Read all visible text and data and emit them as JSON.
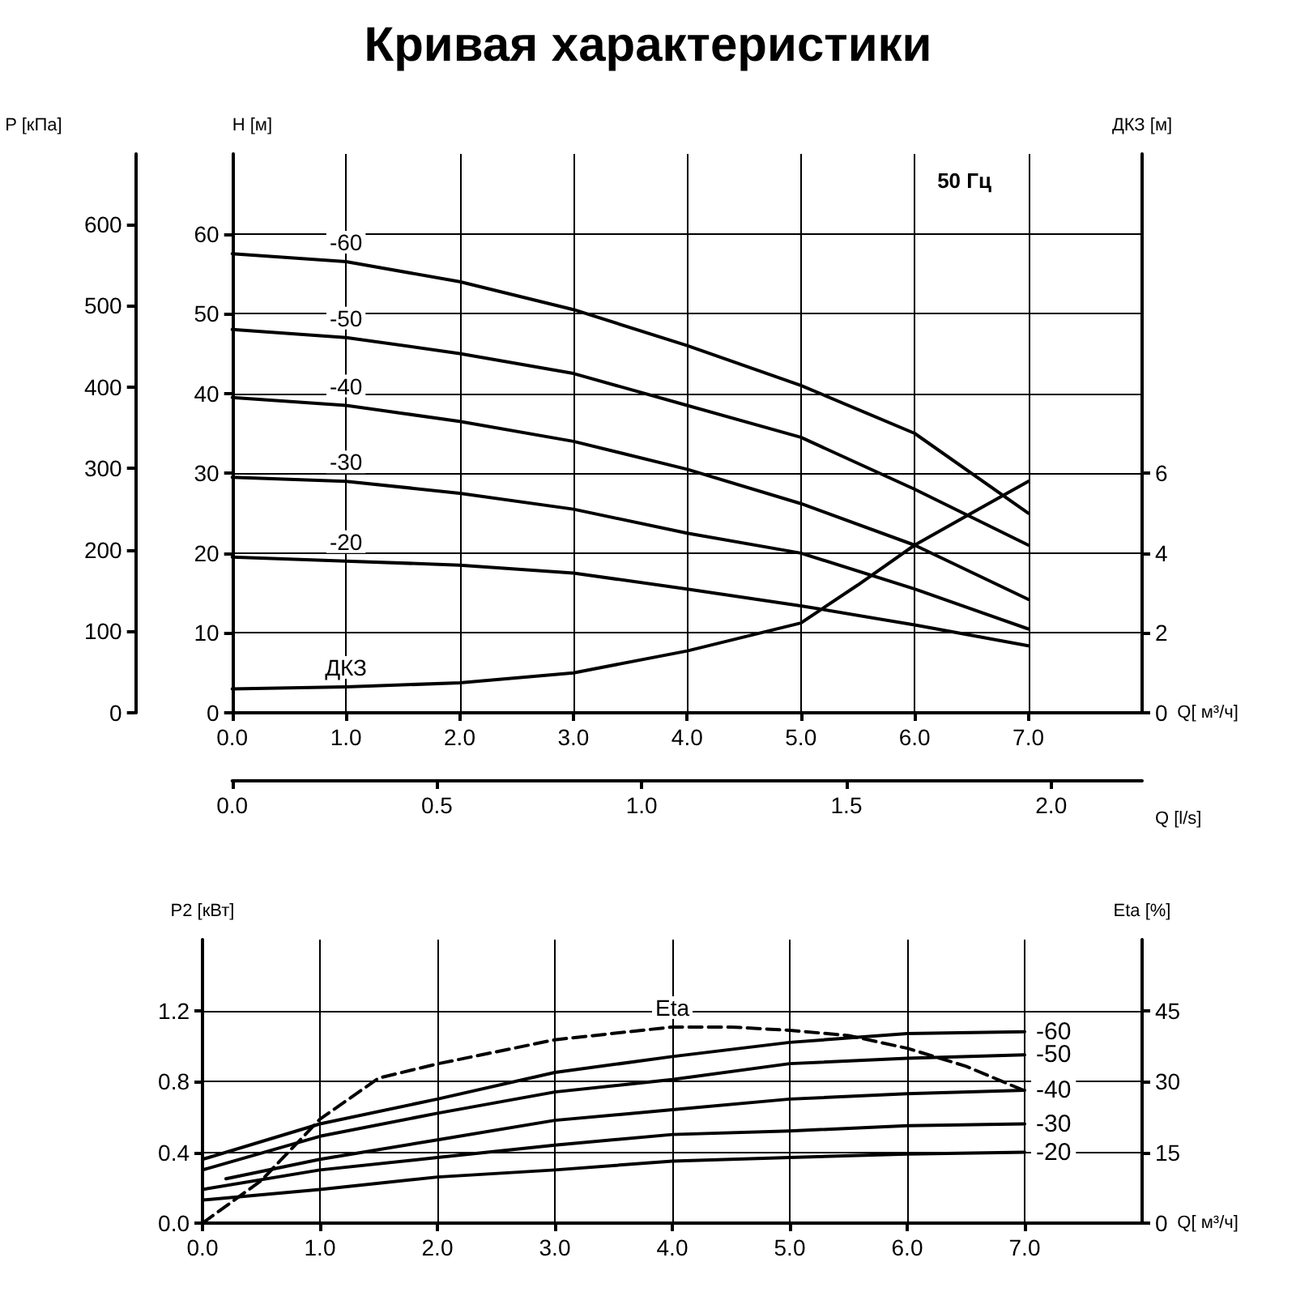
{
  "chart_data": [
    {
      "type": "line",
      "title": "Кривая характеристики",
      "xlabel": "Q[ м³/ч]",
      "ylabel": "H [м]",
      "y2label": "P [кПа]",
      "y3label": "ДКЗ [м]",
      "x2label": "Q [l/s]",
      "xlim": [
        0,
        8
      ],
      "xticks": [
        {
          "value": 0,
          "label": "0.0"
        },
        {
          "value": 1,
          "label": "1.0"
        },
        {
          "value": 2,
          "label": "2.0"
        },
        {
          "value": 3,
          "label": "3.0"
        },
        {
          "value": 4,
          "label": "4.0"
        },
        {
          "value": 5,
          "label": "5.0"
        },
        {
          "value": 6,
          "label": "6.0"
        },
        {
          "value": 7,
          "label": "7.0"
        }
      ],
      "x2lim": [
        0,
        2.222
      ],
      "x2ticks": [
        {
          "value": 0,
          "label": "0.0"
        },
        {
          "value": 0.5,
          "label": "0.5"
        },
        {
          "value": 1,
          "label": "1.0"
        },
        {
          "value": 1.5,
          "label": "1.5"
        },
        {
          "value": 2,
          "label": "2.0"
        }
      ],
      "ylim": [
        0,
        70
      ],
      "yticks": [
        0,
        10,
        20,
        30,
        40,
        50,
        60
      ],
      "y2lim": [
        0,
        686
      ],
      "y2ticks": [
        0,
        100,
        200,
        300,
        400,
        500,
        600
      ],
      "y3lim": [
        0,
        14
      ],
      "y3ticks": [
        0,
        2,
        4,
        6
      ],
      "grid": true,
      "legend": false,
      "marker": "none",
      "annotations": [
        "50 Гц"
      ],
      "x": [
        0,
        1,
        2,
        3,
        4,
        5,
        6,
        7
      ],
      "series": [
        {
          "name": "-60",
          "color": "#000000",
          "values": [
            57.5,
            56.5,
            54,
            50.5,
            46,
            41,
            35,
            25
          ]
        },
        {
          "name": "-50",
          "color": "#000000",
          "values": [
            48,
            47,
            45,
            42.5,
            38.5,
            34.5,
            28,
            21
          ]
        },
        {
          "name": "-40",
          "color": "#000000",
          "values": [
            39.5,
            38.5,
            36.5,
            34,
            30.5,
            26.2,
            21,
            14.2
          ]
        },
        {
          "name": "-30",
          "color": "#000000",
          "values": [
            29.5,
            29,
            27.5,
            25.5,
            22.5,
            20,
            15.5,
            10.5
          ]
        },
        {
          "name": "-20",
          "color": "#000000",
          "values": [
            19.5,
            19,
            18.5,
            17.5,
            15.5,
            13.4,
            11,
            8.4
          ]
        },
        {
          "name": "ДКЗ",
          "color": "#000000",
          "axis": "y3",
          "x": [
            0,
            1,
            2,
            3,
            4,
            4.5,
            5,
            5.5,
            6,
            6.5,
            7
          ],
          "values": [
            0.6,
            0.65,
            0.75,
            1.0,
            1.55,
            1.9,
            2.25,
            3.2,
            4.2,
            5.0,
            5.8
          ]
        }
      ]
    },
    {
      "type": "line",
      "xlabel": "Q[ м³/ч]",
      "ylabel": "P2 [кВт]",
      "y2label": "Eta [%]",
      "xlim": [
        0,
        8
      ],
      "xticks": [
        {
          "value": 0,
          "label": "0.0"
        },
        {
          "value": 1,
          "label": "1.0"
        },
        {
          "value": 2,
          "label": "2.0"
        },
        {
          "value": 3,
          "label": "3.0"
        },
        {
          "value": 4,
          "label": "4.0"
        },
        {
          "value": 5,
          "label": "5.0"
        },
        {
          "value": 6,
          "label": "6.0"
        },
        {
          "value": 7,
          "label": "7.0"
        }
      ],
      "ylim": [
        0,
        1.6
      ],
      "yticks": [
        {
          "value": 0,
          "label": "0.0"
        },
        {
          "value": 0.4,
          "label": "0.4"
        },
        {
          "value": 0.8,
          "label": "0.8"
        },
        {
          "value": 1.2,
          "label": "1.2"
        }
      ],
      "y2lim": [
        0,
        60
      ],
      "y2ticks": [
        0,
        15,
        30,
        45
      ],
      "grid": true,
      "legend": false,
      "marker": "none",
      "x": [
        0,
        1,
        2,
        3,
        4,
        5,
        6,
        7
      ],
      "series": [
        {
          "name": "-60",
          "color": "#000000",
          "values": [
            0.36,
            0.56,
            0.7,
            0.85,
            0.94,
            1.02,
            1.07,
            1.08
          ]
        },
        {
          "name": "-50",
          "color": "#000000",
          "values": [
            0.3,
            0.49,
            0.62,
            0.74,
            0.81,
            0.9,
            0.93,
            0.95
          ]
        },
        {
          "name": "-40",
          "color": "#000000",
          "x": [
            0.2,
            1,
            2,
            3,
            4,
            5,
            6,
            7
          ],
          "values": [
            0.25,
            0.36,
            0.47,
            0.58,
            0.64,
            0.7,
            0.73,
            0.75
          ]
        },
        {
          "name": "-30",
          "color": "#000000",
          "values": [
            0.19,
            0.3,
            0.37,
            0.44,
            0.5,
            0.52,
            0.55,
            0.56
          ]
        },
        {
          "name": "-20",
          "color": "#000000",
          "values": [
            0.13,
            0.19,
            0.26,
            0.3,
            0.35,
            0.37,
            0.39,
            0.4
          ]
        },
        {
          "name": "Eta",
          "color": "#000000",
          "axis": "y2",
          "line_style": "dashed",
          "x": [
            0,
            0.5,
            1,
            1.5,
            2,
            3,
            4,
            4.5,
            5,
            5.5,
            6,
            6.5,
            7
          ],
          "values": [
            0,
            9,
            22,
            30.7,
            33.7,
            38.8,
            41.5,
            41.5,
            40.8,
            39.7,
            37,
            33.2,
            28
          ]
        }
      ]
    }
  ]
}
